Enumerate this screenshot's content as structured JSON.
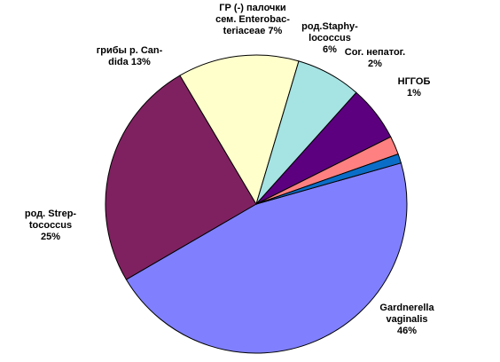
{
  "chart_data": {
    "type": "pie",
    "title": "",
    "legend": "none",
    "slices": [
      {
        "label": [
          "Gardnerella",
          "vaginalis",
          "46%"
        ],
        "value": 46,
        "color": "#8080ff"
      },
      {
        "label": [
          "род. Strep-",
          "tococcus",
          "25%"
        ],
        "value": 25,
        "color": "#7f2160"
      },
      {
        "label": [
          "грибы р. Can-",
          "dida 13%"
        ],
        "value": 13,
        "color": "#ffffcc"
      },
      {
        "label": [
          "ГР (-) палочки",
          "сем. Enterobac-",
          "teriaceae 7%"
        ],
        "value": 7,
        "color": "#a6e3e3"
      },
      {
        "label": [
          "род.Staphy-",
          "lococcus",
          "6%"
        ],
        "value": 6,
        "color": "#5c0080"
      },
      {
        "label": [
          "Cor. непатог.",
          "2%"
        ],
        "value": 2,
        "color": "#ff8080"
      },
      {
        "label": [
          "НГГОБ",
          "1%"
        ],
        "value": 1,
        "color": "#0a6ec8"
      }
    ]
  }
}
